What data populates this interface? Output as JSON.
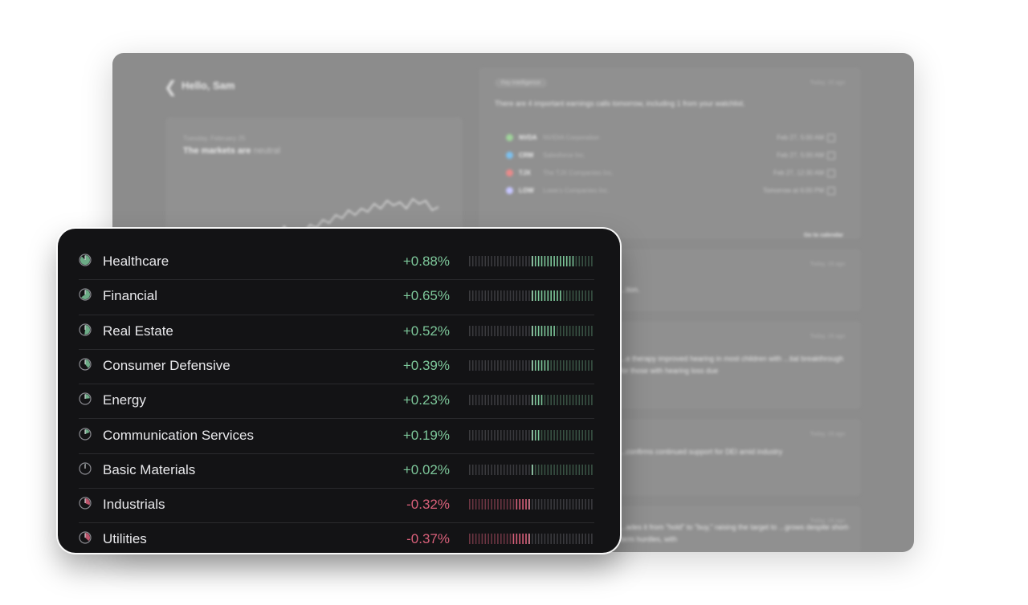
{
  "background": {
    "greeting": "Hello, Sam",
    "market": {
      "date": "Tuesday, February 25",
      "headline_prefix": "The markets are",
      "headline_mood": "neutral"
    },
    "intelligence": {
      "chip": "Fey Intelligence",
      "time": "Today, 10 ago",
      "summary": "There are 4 important earnings calls tomorrow, including 1 from your watchlist.",
      "earnings": [
        {
          "ticker": "NVDA",
          "company": "NVIDIA Corporation",
          "when": "Feb 27, 5:00 AM",
          "color": "#9fd39a"
        },
        {
          "ticker": "CRM",
          "company": "Salesforce Inc.",
          "when": "Feb 27, 5:00 AM",
          "color": "#7cc0ee"
        },
        {
          "ticker": "TJX",
          "company": "The TJX Companies Inc.",
          "when": "Feb 27, 12:30 AM",
          "color": "#e98a8a"
        },
        {
          "ticker": "LOW",
          "company": "Lowe's Companies Inc.",
          "when": "Tomorrow at 6:00 PM",
          "color": "#c5c5ff"
        }
      ],
      "goto_label": "Go to calendar"
    },
    "snippets": [
      {
        "time": "Today, 16 ago",
        "text": "...tion."
      },
      {
        "time": "Today, 16 ago",
        "text": "...e therapy improved hearing in most children with ...tial breakthrough for those with hearing loss due"
      },
      {
        "time": "Today, 16 ago",
        "text": "...confirms continued support for DEI amid industry"
      },
      {
        "time": "Today, 16 ago",
        "text": "...ades it from \"hold\" to \"buy,\" raising the target to ...grows despite short-term hurdles, with"
      }
    ]
  },
  "sectors": [
    {
      "name": "Healthcare",
      "change": "+0.88%",
      "value": 0.88,
      "direction": "up"
    },
    {
      "name": "Financial",
      "change": "+0.65%",
      "value": 0.65,
      "direction": "up"
    },
    {
      "name": "Real Estate",
      "change": "+0.52%",
      "value": 0.52,
      "direction": "up"
    },
    {
      "name": "Consumer Defensive",
      "change": "+0.39%",
      "value": 0.39,
      "direction": "up"
    },
    {
      "name": "Energy",
      "change": "+0.23%",
      "value": 0.23,
      "direction": "up"
    },
    {
      "name": "Communication Services",
      "change": "+0.19%",
      "value": 0.19,
      "direction": "up"
    },
    {
      "name": "Basic Materials",
      "change": "+0.02%",
      "value": 0.02,
      "direction": "up"
    },
    {
      "name": "Industrials",
      "change": "-0.32%",
      "value": -0.32,
      "direction": "down"
    },
    {
      "name": "Utilities",
      "change": "-0.37%",
      "value": -0.37,
      "direction": "down"
    }
  ],
  "colors": {
    "positive": "#7dc79a",
    "negative": "#d9607a",
    "bar_idle": "#3a3a3e"
  }
}
